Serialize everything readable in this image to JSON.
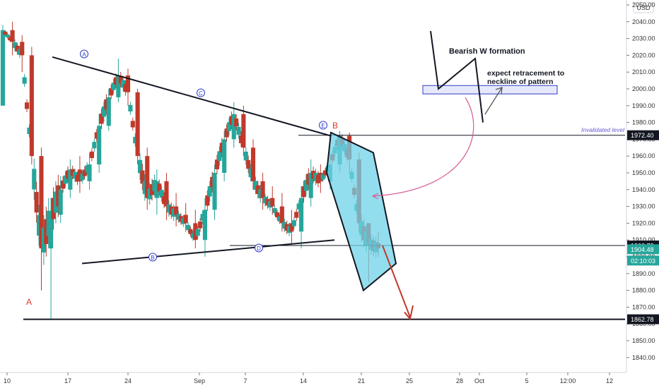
{
  "chart_data": {
    "type": "candlestick",
    "currency": "USD",
    "y_axis": {
      "ticks": [
        2050,
        2040,
        2030,
        2020,
        2010,
        2000,
        1990,
        1980,
        1970,
        1960,
        1950,
        1940,
        1930,
        1920,
        1910,
        1900,
        1890,
        1880,
        1870,
        1860,
        1850,
        1840
      ],
      "tick_labels": [
        "2050.00",
        "2040.00",
        "2030.00",
        "2020.00",
        "2010.00",
        "2000.00",
        "1990.00",
        "1980.00",
        "1970.00",
        "1960.00",
        "1950.00",
        "1940.00",
        "1930.00",
        "1920.00",
        "1910.00",
        "1900.00",
        "1890.00",
        "1880.00",
        "1870.00",
        "1860.00",
        "1850.00",
        "1840.00"
      ],
      "range": [
        1835,
        2052
      ]
    },
    "x_axis": {
      "range_day": [
        0,
        38
      ],
      "ticks": [
        {
          "day": 0,
          "label": "10"
        },
        {
          "day": 7,
          "label": "17"
        },
        {
          "day": 14,
          "label": "24"
        },
        {
          "day": 21,
          "label": "Sep"
        },
        {
          "day": 28,
          "label": "7"
        },
        {
          "day": 35,
          "label": "14"
        },
        {
          "day": 42,
          "label": "21"
        },
        {
          "day": 49,
          "label": "25"
        },
        {
          "day": 56,
          "label": "28"
        },
        {
          "day": 63,
          "label": "Oct"
        },
        {
          "day": 70,
          "label": "5"
        },
        {
          "day": 77,
          "label": "12:00"
        },
        {
          "day": 84,
          "label": "12"
        }
      ]
    },
    "price_badges": [
      {
        "value": 1972.4,
        "label": "1972.40",
        "color": "#131722"
      },
      {
        "value": 1906.73,
        "label": "1906.73",
        "color": "#131722"
      },
      {
        "value": 1904.48,
        "label": "1904.48",
        "color": "#26a69a"
      },
      {
        "value": 1900.5,
        "label": "02:10:03",
        "color": "#26a69a"
      },
      {
        "value": 1862.78,
        "label": "1862.78",
        "color": "#131722"
      }
    ],
    "candles": [
      [
        1990,
        2035,
        2038,
        2028
      ],
      [
        2035,
        2028,
        2040,
        2020
      ],
      [
        2028,
        2020,
        2032,
        2010
      ],
      [
        2020,
        1960,
        2025,
        1955
      ],
      [
        1960,
        1905,
        1965,
        1880
      ],
      [
        1905,
        1925,
        1935,
        1863
      ],
      [
        1925,
        1940,
        1948,
        1920
      ],
      [
        1940,
        1952,
        1958,
        1935
      ],
      [
        1952,
        1945,
        1960,
        1938
      ],
      [
        1945,
        1955,
        1962,
        1940
      ],
      [
        1955,
        1978,
        1985,
        1950
      ],
      [
        1978,
        1995,
        2000,
        1975
      ],
      [
        1995,
        2008,
        2018,
        1992
      ],
      [
        2008,
        1998,
        2012,
        1990
      ],
      [
        1998,
        1960,
        2000,
        1955
      ],
      [
        1960,
        1935,
        1965,
        1928
      ],
      [
        1935,
        1945,
        1952,
        1925
      ],
      [
        1945,
        1930,
        1950,
        1922
      ],
      [
        1930,
        1925,
        1938,
        1918
      ],
      [
        1925,
        1920,
        1932,
        1915
      ],
      [
        1920,
        1910,
        1928,
        1905
      ],
      [
        1910,
        1928,
        1935,
        1900
      ],
      [
        1928,
        1950,
        1955,
        1922
      ],
      [
        1950,
        1970,
        1975,
        1945
      ],
      [
        1970,
        1985,
        1992,
        1965
      ],
      [
        1985,
        1965,
        1990,
        1960
      ],
      [
        1965,
        1945,
        1970,
        1940
      ],
      [
        1945,
        1935,
        1950,
        1928
      ],
      [
        1935,
        1930,
        1942,
        1925
      ],
      [
        1930,
        1920,
        1938,
        1915
      ],
      [
        1920,
        1915,
        1928,
        1908
      ],
      [
        1915,
        1935,
        1942,
        1905
      ],
      [
        1935,
        1950,
        1958,
        1930
      ],
      [
        1950,
        1945,
        1955,
        1938
      ],
      [
        1945,
        1955,
        1962,
        1940
      ],
      [
        1955,
        1972,
        1975,
        1950
      ],
      [
        1972,
        1958,
        1974,
        1950
      ],
      [
        1958,
        1920,
        1962,
        1915
      ],
      [
        1920,
        1908,
        1920,
        1885
      ],
      [
        1908,
        1905,
        1915,
        1900
      ]
    ],
    "annotations": {
      "labels": [
        {
          "text": "A",
          "day": 0.9,
          "price": 1866,
          "color": "#e0342b",
          "circled": false
        },
        {
          "text": "A",
          "day": 2.0,
          "price": 2018,
          "color": "#2e3cc7",
          "circled": true
        },
        {
          "text": "B",
          "day": 8.0,
          "price": 1879,
          "color": "#2e3cc7",
          "circled": true
        },
        {
          "text": "C",
          "day": 5.8,
          "price": 1996,
          "color": "#2e3cc7",
          "circled": true
        },
        {
          "text": "D",
          "day": 8.8,
          "price": 1891,
          "color": "#2e3cc7",
          "circled": true
        },
        {
          "text": "E",
          "day": 14.6,
          "price": 1974,
          "color": "#2e3cc7",
          "circled": true
        },
        {
          "text": "B",
          "day": 15.3,
          "price": 1975,
          "color": "#e0342b",
          "circled": false
        }
      ],
      "texts": [
        {
          "text": "Bearish W formation",
          "day": 27,
          "price": 2022
        },
        {
          "text": "expect retracement to",
          "day": 30.5,
          "price": 2010
        },
        {
          "text": "neckline of pattern",
          "day": 30.5,
          "price": 2004
        },
        {
          "text": "Invalidated level",
          "day": 35.5,
          "price": 1974
        }
      ],
      "lines": [
        {
          "name": "upper-trendline",
          "from": [
            1.0,
            2019
          ],
          "to": [
            15.0,
            1972
          ]
        },
        {
          "name": "lower-trendline",
          "from": [
            2.8,
            1896
          ],
          "to": [
            15.0,
            1910
          ]
        },
        {
          "name": "invalidated-level-line",
          "from": [
            14.0,
            1972.4
          ],
          "to": [
            38,
            1972.4
          ]
        },
        {
          "name": "neckline-level-line",
          "from": [
            7.0,
            1906.73
          ],
          "to": [
            38,
            1906.73
          ]
        },
        {
          "name": "support-line-1862",
          "from": [
            0.0,
            1862.78
          ],
          "to": [
            38,
            1862.78
          ]
        }
      ]
    }
  }
}
